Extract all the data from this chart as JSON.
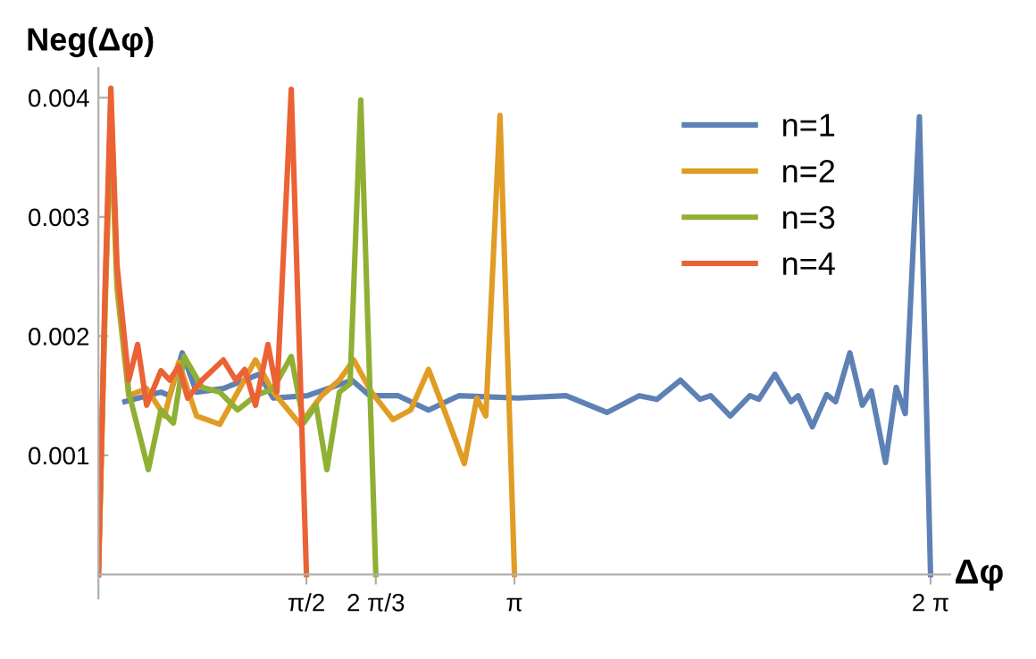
{
  "chart_data": {
    "type": "line",
    "xlabel": "Δφ",
    "ylabel": "Neg(Δφ)",
    "xlim": [
      0,
      6.43
    ],
    "ylim": [
      -0.0002,
      0.00425
    ],
    "xticks": [
      {
        "value": 1.5708,
        "label": "π/2"
      },
      {
        "value": 2.0944,
        "label": "2 π/3"
      },
      {
        "value": 3.1416,
        "label": "π"
      },
      {
        "value": 6.2832,
        "label": "2 π"
      }
    ],
    "yticks": [
      0.001,
      0.002,
      0.003,
      0.004
    ],
    "grid": false,
    "legend": "top right",
    "marker": "none",
    "line_style": "solid",
    "series": [
      {
        "name": "n=1",
        "color": "#5e81b5",
        "x": [
          0.2,
          0.472,
          0.539,
          0.633,
          0.74,
          0.943,
          1.213,
          1.321,
          1.577,
          1.914,
          2.049,
          2.264,
          2.493,
          2.722,
          3.167,
          3.531,
          3.841,
          4.084,
          4.218,
          4.394,
          4.542,
          4.623,
          4.771,
          4.919,
          4.987,
          5.108,
          5.229,
          5.283,
          5.391,
          5.499,
          5.566,
          5.674,
          5.768,
          5.836,
          5.943,
          6.024,
          6.092,
          6.199,
          6.283
        ],
        "values": [
          0.00145,
          0.00153,
          0.0015,
          0.00186,
          0.00153,
          0.00156,
          0.00168,
          0.00148,
          0.0015,
          0.00163,
          0.0015,
          0.0015,
          0.00138,
          0.0015,
          0.00148,
          0.0015,
          0.00136,
          0.0015,
          0.00147,
          0.00163,
          0.00147,
          0.0015,
          0.00133,
          0.0015,
          0.00147,
          0.00168,
          0.00145,
          0.0015,
          0.00124,
          0.00151,
          0.00145,
          0.00186,
          0.00142,
          0.00154,
          0.00094,
          0.00157,
          0.00135,
          0.00384,
          0
        ]
      },
      {
        "name": "n=2",
        "color": "#e19c24",
        "x": [
          0,
          0.05,
          0.094,
          0.14,
          0.229,
          0.364,
          0.499,
          0.606,
          0.741,
          0.916,
          1.051,
          1.186,
          1.321,
          1.523,
          1.685,
          1.819,
          1.927,
          2.062,
          2.224,
          2.358,
          2.493,
          2.628,
          2.763,
          2.857,
          2.925,
          3.032,
          3.1416
        ],
        "values": [
          0,
          0.0022,
          0.0038,
          0.0024,
          0.0015,
          0.00156,
          0.00133,
          0.00178,
          0.00133,
          0.00126,
          0.00153,
          0.0018,
          0.00153,
          0.00126,
          0.0015,
          0.00163,
          0.0018,
          0.00153,
          0.0013,
          0.00138,
          0.00172,
          0.00133,
          0.00093,
          0.00148,
          0.00133,
          0.00385,
          0
        ]
      },
      {
        "name": "n=3",
        "color": "#8fb032",
        "x": [
          0,
          0.05,
          0.094,
          0.14,
          0.229,
          0.377,
          0.472,
          0.566,
          0.647,
          0.782,
          0.916,
          1.051,
          1.186,
          1.321,
          1.456,
          1.55,
          1.644,
          1.725,
          1.819,
          1.9,
          1.981,
          2.0944
        ],
        "values": [
          0,
          0.0023,
          0.00398,
          0.0025,
          0.00153,
          0.00088,
          0.00138,
          0.00127,
          0.00183,
          0.00157,
          0.00153,
          0.00138,
          0.0015,
          0.00156,
          0.00183,
          0.00127,
          0.00142,
          0.00088,
          0.00153,
          0.0016,
          0.00398,
          0
        ]
      },
      {
        "name": "n=4",
        "color": "#eb6235",
        "x": [
          0,
          0.05,
          0.094,
          0.14,
          0.229,
          0.296,
          0.364,
          0.472,
          0.539,
          0.606,
          0.674,
          0.782,
          0.943,
          1.038,
          1.105,
          1.186,
          1.28,
          1.348,
          1.456,
          1.5708
        ],
        "values": [
          0,
          0.0024,
          0.00408,
          0.0026,
          0.00163,
          0.00193,
          0.00142,
          0.00171,
          0.00163,
          0.00175,
          0.00148,
          0.00163,
          0.0018,
          0.00163,
          0.00172,
          0.00142,
          0.00193,
          0.00153,
          0.00407,
          0
        ]
      }
    ]
  }
}
